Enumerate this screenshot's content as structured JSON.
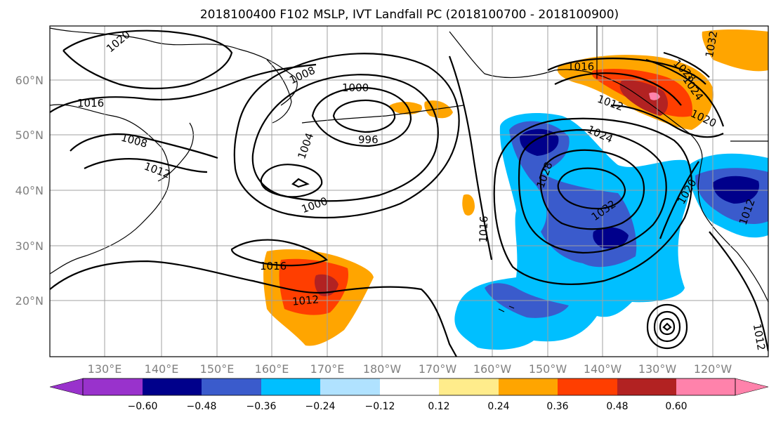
{
  "title": "2018100400 F102 MSLP, IVT Landfall PC (2018100700 - 2018100900)",
  "lat_labels": [
    "60°N",
    "50°N",
    "40°N",
    "30°N",
    "20°N"
  ],
  "lon_labels": [
    "130°E",
    "140°E",
    "150°E",
    "160°E",
    "170°E",
    "180°W",
    "170°W",
    "160°W",
    "150°W",
    "140°W",
    "130°W",
    "120°W"
  ],
  "colorbar": {
    "ticks": [
      "−0.60",
      "−0.48",
      "−0.36",
      "−0.24",
      "−0.12",
      "0.12",
      "0.24",
      "0.36",
      "0.48",
      "0.60"
    ],
    "colors": [
      "#9932cc",
      "#00008b",
      "#3a5bcc",
      "#00bfff",
      "#b0e2ff",
      "#ffffff",
      "#ffec8b",
      "#ffa500",
      "#ff3e00",
      "#b22222",
      "#ff82ab"
    ]
  },
  "contour_labels": [
    "1020",
    "1008",
    "1016",
    "1008",
    "1012",
    "1004",
    "1000",
    "996",
    "1000",
    "1016",
    "1012",
    "1016",
    "1012",
    "1024",
    "1028",
    "1032",
    "1020",
    "1016",
    "1012",
    "1028",
    "1020",
    "1024",
    "1032",
    "1012"
  ],
  "colors": {
    "background": "#ffffff",
    "grid": "#a0a0a0",
    "contour": "#000000"
  }
}
